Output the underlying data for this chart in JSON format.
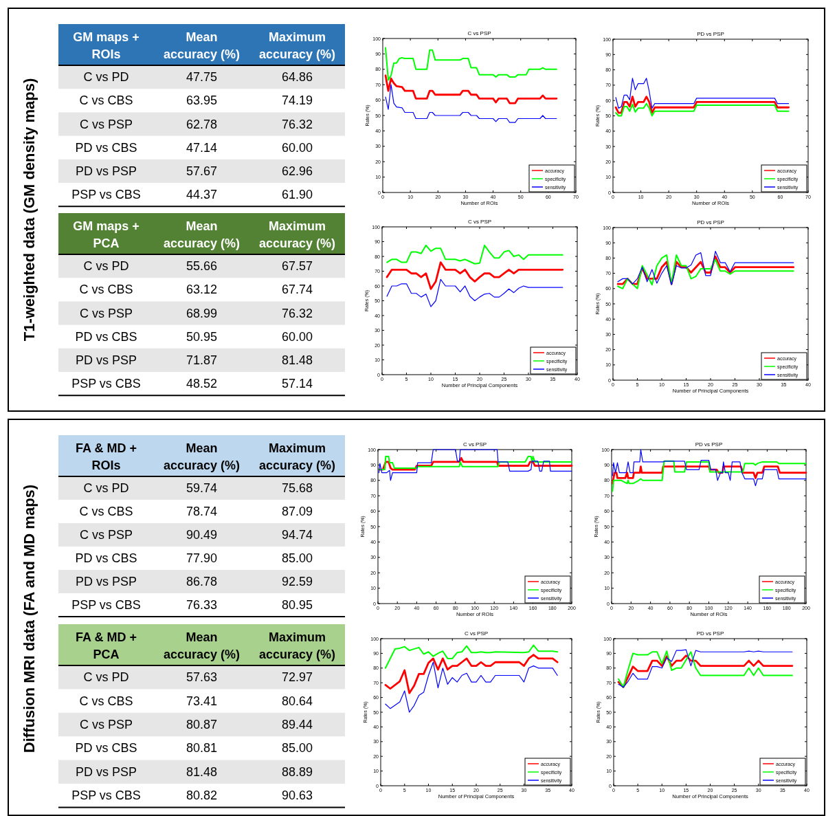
{
  "chart_data": [
    {
      "type": "other",
      "title": "GM maps + ROIs",
      "categories": [
        "C vs PD",
        "C vs CBS",
        "C vs PSP",
        "PD vs CBS",
        "PD vs PSP",
        "PSP vs CBS"
      ],
      "annotations": [
        "T1-weighted data (GM density maps)"
      ],
      "series": [
        {
          "name": "Mean accuracy (%)",
          "values": [
            47.75,
            63.95,
            62.78,
            47.14,
            57.67,
            44.37
          ],
          "value_labels": [
            "47.75",
            "63.95",
            "62.78",
            "47.14",
            "57.67",
            "44.37"
          ]
        },
        {
          "name": "Maximum accuracy (%)",
          "values": [
            64.86,
            74.19,
            76.32,
            60,
            62.96,
            61.9
          ],
          "value_labels": [
            "64.86",
            "74.19",
            "76.32",
            "60.00",
            "62.96",
            "61.90"
          ]
        }
      ]
    },
    {
      "type": "line",
      "title": "C vs PSP",
      "xlabel": "Number of ROIs",
      "ylabel": "Rates (%)",
      "xlim": [
        0,
        70
      ],
      "xticks": [
        0,
        10,
        20,
        30,
        40,
        50,
        60,
        70
      ],
      "ylim": [
        0,
        100
      ],
      "yticks": [
        0,
        10,
        20,
        30,
        40,
        50,
        60,
        70,
        80,
        90,
        100
      ],
      "legend": "bottom right",
      "series": [
        {
          "name": "accuracy",
          "color": "#ff0000",
          "x": [
            1,
            2,
            3,
            4,
            5,
            7,
            8,
            11,
            12,
            16,
            17,
            18,
            19,
            28,
            29,
            31,
            32,
            34,
            35,
            40,
            41,
            42,
            45,
            46,
            48,
            49,
            57,
            58,
            59,
            63
          ],
          "values": [
            76,
            66,
            74,
            71,
            69,
            68.5,
            66,
            66,
            61,
            61,
            66,
            66,
            63.5,
            63.5,
            66,
            66,
            63.5,
            63.5,
            61,
            61,
            58.5,
            61,
            61,
            58,
            58,
            61,
            61,
            63,
            61,
            61
          ]
        },
        {
          "name": "specificity",
          "color": "#00ff00",
          "x": [
            1,
            2,
            3,
            4,
            5,
            6,
            7,
            8,
            11,
            12,
            16,
            17,
            18,
            19,
            28,
            29,
            31,
            32,
            34,
            35,
            40,
            41,
            42,
            45,
            46,
            48,
            49,
            52,
            53,
            57,
            58,
            59,
            63
          ],
          "values": [
            94,
            73,
            76,
            84,
            84,
            87,
            87.5,
            87,
            87,
            80,
            80,
            92.5,
            92.5,
            86,
            86,
            87,
            87,
            81,
            81,
            76.5,
            76.5,
            75,
            76.5,
            76.5,
            75,
            75,
            76.5,
            76.5,
            80,
            80,
            81,
            80,
            80
          ]
        },
        {
          "name": "sensitivity",
          "color": "#0000ff",
          "x": [
            1,
            2,
            3,
            4,
            5,
            7,
            8,
            11,
            12,
            16,
            17,
            18,
            19,
            28,
            29,
            31,
            32,
            34,
            35,
            40,
            41,
            42,
            45,
            46,
            48,
            49,
            57,
            58,
            59,
            63
          ],
          "values": [
            62,
            54,
            70,
            58,
            55.5,
            55,
            52,
            52,
            48,
            48,
            52,
            52,
            50,
            50,
            52,
            52,
            50,
            50,
            48,
            48,
            46,
            48,
            48,
            45.5,
            45.5,
            48,
            48,
            50,
            48,
            48
          ]
        }
      ]
    },
    {
      "type": "line",
      "title": "PD vs PSP",
      "xlabel": "Number of ROIs",
      "ylabel": "Rates (%)",
      "xlim": [
        0,
        70
      ],
      "xticks": [
        0,
        10,
        20,
        30,
        40,
        50,
        60,
        70
      ],
      "ylim": [
        0,
        100
      ],
      "yticks": [
        0,
        10,
        20,
        30,
        40,
        50,
        60,
        70,
        80,
        90,
        100
      ],
      "legend": "bottom right",
      "series": [
        {
          "name": "accuracy",
          "color": "#ff0000",
          "x": [
            1,
            2,
            3,
            4,
            5,
            6,
            7,
            8,
            9,
            11,
            12,
            13,
            14,
            15,
            29,
            30,
            58,
            59,
            63
          ],
          "values": [
            55.5,
            52,
            52,
            59,
            59,
            56,
            62.5,
            56,
            59,
            59,
            62.5,
            59,
            52,
            55.5,
            55.5,
            59,
            59,
            55.5,
            55.5
          ]
        },
        {
          "name": "specificity",
          "color": "#00ff00",
          "x": [
            1,
            2,
            3,
            4,
            5,
            6,
            7,
            8,
            9,
            11,
            12,
            13,
            14,
            15,
            29,
            30,
            58,
            59,
            63
          ],
          "values": [
            52,
            50,
            50,
            56,
            56,
            53,
            57.5,
            52.5,
            55,
            55,
            58,
            55,
            50,
            53,
            53,
            57,
            57,
            53,
            53
          ]
        },
        {
          "name": "sensitivity",
          "color": "#0000ff",
          "x": [
            1,
            2,
            3,
            4,
            5,
            6,
            7,
            8,
            9,
            11,
            12,
            13,
            14,
            15,
            29,
            30,
            58,
            59,
            63
          ],
          "values": [
            62,
            55,
            56,
            63.5,
            63.5,
            60.5,
            74.5,
            67,
            71,
            71,
            74.5,
            66,
            55,
            58,
            58,
            61.5,
            61.5,
            58,
            58
          ]
        }
      ]
    },
    {
      "type": "other",
      "title": "GM maps + PCA",
      "categories": [
        "C vs PD",
        "C vs CBS",
        "C vs PSP",
        "PD vs CBS",
        "PD vs PSP",
        "PSP vs CBS"
      ],
      "series": [
        {
          "name": "Mean accuracy (%)",
          "values": [
            55.66,
            63.12,
            68.99,
            50.95,
            71.87,
            48.52
          ],
          "value_labels": [
            "55.66",
            "63.12",
            "68.99",
            "50.95",
            "71.87",
            "48.52"
          ]
        },
        {
          "name": "Maximum accuracy (%)",
          "values": [
            67.57,
            67.74,
            76.32,
            60,
            81.48,
            57.14
          ],
          "value_labels": [
            "67.57",
            "67.74",
            "76.32",
            "60.00",
            "81.48",
            "57.14"
          ]
        }
      ]
    },
    {
      "type": "line",
      "title": "C vs PSP",
      "xlabel": "Number of Principal Components",
      "ylabel": "Rates (%)",
      "xlim": [
        0,
        40
      ],
      "xticks": [
        0,
        5,
        10,
        15,
        20,
        25,
        30,
        35,
        40
      ],
      "ylim": [
        0,
        100
      ],
      "yticks": [
        0,
        10,
        20,
        30,
        40,
        50,
        60,
        70,
        80,
        90,
        100
      ],
      "legend": "bottom right",
      "series": [
        {
          "name": "accuracy",
          "color": "#ff0000",
          "x": [
            1,
            2,
            5,
            6,
            7,
            8,
            9,
            10,
            11,
            12,
            13,
            15,
            16,
            17,
            18,
            19,
            20,
            21,
            22,
            23,
            24,
            25,
            26,
            27,
            28,
            37
          ],
          "values": [
            66,
            71,
            71,
            68.5,
            68.5,
            66,
            68.5,
            58,
            63,
            76,
            71,
            71,
            68.5,
            71,
            66,
            63,
            66,
            68.5,
            68.5,
            66,
            66,
            68.5,
            71,
            68.5,
            71,
            71
          ]
        },
        {
          "name": "specificity",
          "color": "#00ff00",
          "x": [
            1,
            2,
            3,
            4,
            5,
            6,
            7,
            8,
            9,
            10,
            11,
            12,
            13,
            15,
            16,
            17,
            18,
            19,
            20,
            21,
            22,
            23,
            24,
            25,
            26,
            27,
            28,
            29,
            30,
            37
          ],
          "values": [
            76,
            78,
            78,
            76,
            76,
            83,
            83,
            82,
            87.5,
            83.5,
            85.5,
            85.5,
            78,
            78,
            77,
            78,
            76.5,
            75,
            75.5,
            87.5,
            83,
            79,
            79,
            83,
            84,
            80,
            81,
            78,
            81,
            81
          ]
        },
        {
          "name": "sensitivity",
          "color": "#0000ff",
          "x": [
            1,
            2,
            3,
            4,
            5,
            6,
            7,
            8,
            9,
            10,
            11,
            12,
            13,
            15,
            16,
            17,
            18,
            19,
            20,
            21,
            22,
            23,
            24,
            25,
            26,
            27,
            28,
            29,
            30,
            37
          ],
          "values": [
            53,
            60,
            60,
            61.5,
            61.5,
            55,
            55,
            52.5,
            54.5,
            46,
            50,
            64.5,
            60,
            60,
            56,
            60,
            53,
            50,
            52.5,
            54.5,
            55,
            52.5,
            52.5,
            55,
            58,
            55.5,
            58.5,
            60,
            59,
            59
          ]
        }
      ]
    },
    {
      "type": "line",
      "title": "PD vs PSP",
      "xlabel": "Number of Principal Components",
      "ylabel": "Rates (%)",
      "xlim": [
        0,
        40
      ],
      "xticks": [
        0,
        5,
        10,
        15,
        20,
        25,
        30,
        35,
        40
      ],
      "ylim": [
        0,
        100
      ],
      "yticks": [
        0,
        10,
        20,
        30,
        40,
        50,
        60,
        70,
        80,
        90,
        100
      ],
      "legend": "bottom right",
      "series": [
        {
          "name": "accuracy",
          "color": "#ff0000",
          "x": [
            1,
            2,
            3,
            4,
            5,
            6,
            7,
            8,
            9,
            10,
            11,
            12,
            13,
            14,
            15,
            16,
            17,
            18,
            19,
            20,
            21,
            22,
            23,
            24,
            25,
            37
          ],
          "values": [
            63,
            63,
            66.5,
            63,
            63,
            73.5,
            66.5,
            66.5,
            66.5,
            74,
            77.5,
            63,
            77.5,
            74,
            74,
            70.5,
            74,
            77.5,
            70.5,
            70.5,
            81,
            74,
            74,
            70.5,
            74,
            74
          ]
        },
        {
          "name": "specificity",
          "color": "#00ff00",
          "x": [
            1,
            2,
            3,
            4,
            5,
            6,
            7,
            8,
            9,
            10,
            11,
            12,
            13,
            14,
            15,
            16,
            17,
            18,
            19,
            20,
            21,
            22,
            23,
            24,
            25,
            37
          ],
          "values": [
            61.5,
            60,
            66.5,
            63,
            60,
            75,
            69,
            62.5,
            75,
            80,
            82,
            63,
            82,
            75,
            75,
            66.5,
            68,
            73,
            73,
            73,
            79,
            71.5,
            71.5,
            69.5,
            71.5,
            71.5
          ]
        },
        {
          "name": "sensitivity",
          "color": "#0000ff",
          "x": [
            1,
            2,
            3,
            4,
            5,
            6,
            7,
            8,
            9,
            10,
            11,
            12,
            13,
            14,
            15,
            16,
            17,
            18,
            19,
            20,
            21,
            22,
            23,
            24,
            25,
            37
          ],
          "values": [
            64.5,
            66.5,
            66.5,
            63,
            66.5,
            74,
            64.5,
            72.5,
            63.5,
            70,
            75,
            62.5,
            75,
            73.5,
            73.5,
            75.5,
            82,
            83.5,
            68.5,
            68.5,
            84.5,
            77,
            77,
            71,
            77,
            77
          ]
        }
      ]
    },
    {
      "type": "other",
      "title": "FA & MD + ROIs",
      "categories": [
        "C vs PD",
        "C vs CBS",
        "C vs PSP",
        "PD vs CBS",
        "PD vs PSP",
        "PSP vs CBS"
      ],
      "annotations": [
        "Diffusion MRI data (FA and MD maps)"
      ],
      "series": [
        {
          "name": "Mean accuracy (%)",
          "values": [
            59.74,
            78.74,
            90.49,
            77.9,
            86.78,
            76.33
          ],
          "value_labels": [
            "59.74",
            "78.74",
            "90.49",
            "77.90",
            "86.78",
            "76.33"
          ]
        },
        {
          "name": "Maximum accuracy (%)",
          "values": [
            75.68,
            87.09,
            94.74,
            85,
            92.59,
            80.95
          ],
          "value_labels": [
            "75.68",
            "87.09",
            "94.74",
            "85.00",
            "92.59",
            "80.95"
          ]
        }
      ]
    },
    {
      "type": "line",
      "title": "C vs PSP",
      "xlabel": "Number of ROIs",
      "ylabel": "Rates (%)",
      "xlim": [
        0,
        200
      ],
      "xticks": [
        0,
        20,
        40,
        60,
        80,
        100,
        120,
        140,
        160,
        180,
        200
      ],
      "ylim": [
        0,
        100
      ],
      "yticks": [
        0,
        10,
        20,
        30,
        40,
        50,
        60,
        70,
        80,
        90,
        100
      ],
      "legend": "bottom right",
      "series": [
        {
          "name": "accuracy",
          "color": "#ff0000",
          "x": [
            1,
            5,
            8,
            11,
            13,
            15,
            38,
            40,
            55,
            57,
            84,
            86,
            88,
            123,
            124,
            155,
            157,
            160,
            162,
            200
          ],
          "values": [
            87,
            87,
            92,
            92,
            88,
            87,
            87,
            89.5,
            89.5,
            92,
            92,
            94.5,
            92,
            92,
            89.5,
            89.5,
            92,
            92,
            89.5,
            89.5
          ]
        },
        {
          "name": "specificity",
          "color": "#00ff00",
          "x": [
            1,
            7,
            8,
            11,
            12,
            15,
            17,
            40,
            41,
            57,
            84,
            85,
            87,
            124,
            125,
            152,
            155,
            158,
            159,
            160,
            162,
            200
          ],
          "values": [
            87,
            87,
            95.5,
            95.5,
            91.5,
            91.5,
            88,
            88,
            89,
            89,
            89,
            92,
            89,
            89,
            92,
            92,
            95.5,
            95.5,
            92,
            95.5,
            92,
            92
          ]
        },
        {
          "name": "sensitivity",
          "color": "#0000ff",
          "x": [
            1,
            2,
            4,
            9,
            12,
            13,
            15,
            40,
            41,
            55,
            57,
            80,
            82,
            84,
            85,
            123,
            124,
            134,
            136,
            155,
            158,
            159,
            165,
            167,
            169,
            171,
            177,
            178,
            200
          ],
          "values": [
            85,
            91,
            85,
            85,
            86.5,
            80,
            85,
            85,
            91.5,
            91.5,
            100,
            100,
            92.5,
            92.5,
            100,
            100,
            92,
            92,
            86,
            86,
            87,
            92.5,
            92.5,
            86,
            86,
            92.5,
            92.5,
            86,
            86
          ]
        }
      ]
    },
    {
      "type": "line",
      "title": "PD vs PSP",
      "xlabel": "Number of ROIs",
      "ylabel": "Rates (%)",
      "xlim": [
        0,
        200
      ],
      "xticks": [
        0,
        20,
        40,
        60,
        80,
        100,
        120,
        140,
        160,
        180,
        200
      ],
      "ylim": [
        0,
        100
      ],
      "yticks": [
        0,
        10,
        20,
        30,
        40,
        50,
        60,
        70,
        80,
        90,
        100
      ],
      "legend": "bottom right",
      "series": [
        {
          "name": "accuracy",
          "color": "#ff0000",
          "x": [
            1,
            3,
            5,
            6,
            14,
            16,
            17,
            22,
            23,
            29,
            30,
            31,
            52,
            53,
            100,
            101,
            108,
            110,
            114,
            115,
            122,
            133,
            135,
            146,
            148,
            150,
            155,
            157,
            171,
            173,
            200
          ],
          "values": [
            78,
            85,
            85,
            81.5,
            81.5,
            85,
            81.5,
            81.5,
            85,
            85,
            89,
            85,
            85,
            89,
            89,
            87,
            87,
            85,
            85,
            89,
            89,
            89,
            85,
            85,
            81.5,
            85,
            85,
            89,
            89,
            85,
            85
          ]
        },
        {
          "name": "specificity",
          "color": "#00ff00",
          "x": [
            1,
            2,
            10,
            16,
            17,
            18,
            22,
            28,
            30,
            32,
            52,
            54,
            64,
            65,
            75,
            77,
            100,
            101,
            135,
            137,
            146,
            148,
            150,
            155,
            170,
            172,
            200
          ],
          "values": [
            73,
            80,
            80,
            78,
            80,
            78,
            78,
            80,
            81,
            80,
            80,
            92.5,
            92.5,
            85.5,
            85.5,
            92,
            92,
            85.5,
            85.5,
            91,
            91,
            90,
            91,
            92,
            92,
            91,
            91
          ]
        },
        {
          "name": "sensitivity",
          "color": "#0000ff",
          "x": [
            1,
            2,
            4,
            6,
            8,
            15,
            17,
            19,
            22,
            23,
            29,
            30,
            32,
            53,
            55,
            75,
            77,
            90,
            92,
            100,
            102,
            107,
            109,
            112,
            114,
            115,
            117,
            120,
            122,
            124,
            132,
            134,
            137,
            146,
            148,
            150,
            155,
            157,
            170,
            172,
            200
          ],
          "values": [
            83,
            91.5,
            85,
            91.5,
            85,
            85,
            92,
            85,
            85,
            92,
            92,
            100,
            92,
            92,
            92.5,
            92.5,
            87,
            87,
            93,
            93,
            87,
            87,
            80,
            85,
            85,
            92,
            85,
            85,
            80,
            92,
            92,
            85,
            81,
            81,
            76.5,
            81,
            81,
            87,
            87,
            81,
            81
          ]
        }
      ]
    },
    {
      "type": "other",
      "title": "FA & MD + PCA",
      "categories": [
        "C vs PD",
        "C vs CBS",
        "C vs PSP",
        "PD vs CBS",
        "PD vs PSP",
        "PSP vs CBS"
      ],
      "series": [
        {
          "name": "Mean accuracy (%)",
          "values": [
            57.63,
            73.41,
            80.87,
            80.81,
            81.48,
            80.82
          ],
          "value_labels": [
            "57.63",
            "73.41",
            "80.87",
            "80.81",
            "81.48",
            "80.82"
          ]
        },
        {
          "name": "Maximum accuracy (%)",
          "values": [
            72.97,
            80.64,
            89.44,
            85,
            88.89,
            90.63
          ],
          "value_labels": [
            "72.97",
            "80.64",
            "89.44",
            "85.00",
            "88.89",
            "90.63"
          ]
        }
      ]
    },
    {
      "type": "line",
      "title": "C vs PSP",
      "xlabel": "Number of Principal Components",
      "ylabel": "Rates (%)",
      "xlim": [
        0,
        40
      ],
      "xticks": [
        0,
        5,
        10,
        15,
        20,
        25,
        30,
        35,
        40
      ],
      "ylim": [
        0,
        100
      ],
      "yticks": [
        0,
        10,
        20,
        30,
        40,
        50,
        60,
        70,
        80,
        90,
        100
      ],
      "legend": "bottom right",
      "series": [
        {
          "name": "accuracy",
          "color": "#ff0000",
          "x": [
            1,
            2,
            4,
            5,
            6,
            7,
            8,
            9,
            10,
            11,
            12,
            13,
            14,
            15,
            16,
            17,
            18,
            19,
            20,
            21,
            22,
            23,
            24,
            29,
            30,
            31,
            32,
            33,
            36,
            37
          ],
          "values": [
            68.5,
            66,
            71,
            78.5,
            63,
            68,
            76,
            76,
            83.5,
            86.5,
            79,
            86.5,
            79,
            81.5,
            81.5,
            84,
            86.5,
            81.5,
            81.5,
            84,
            81.5,
            81.5,
            84,
            84,
            81.5,
            86.5,
            89,
            86.5,
            86.5,
            84
          ]
        },
        {
          "name": "specificity",
          "color": "#00ff00",
          "x": [
            1,
            3,
            4,
            5,
            6,
            8,
            9,
            10,
            11,
            12,
            13,
            14,
            15,
            16,
            17,
            18,
            19,
            20,
            21,
            22,
            23,
            24,
            30,
            31,
            32,
            33,
            36,
            37
          ],
          "values": [
            80,
            93,
            93.5,
            94.5,
            92,
            94,
            89.5,
            91,
            88,
            90,
            91.5,
            86.5,
            86.5,
            90.5,
            91,
            95,
            90.5,
            90.5,
            91,
            90.5,
            90.5,
            91,
            90.5,
            91,
            95.5,
            91.5,
            91.5,
            91
          ]
        },
        {
          "name": "sensitivity",
          "color": "#0000ff",
          "x": [
            1,
            2,
            4,
            5,
            6,
            7,
            8,
            9,
            10,
            11,
            12,
            13,
            14,
            15,
            16,
            17,
            18,
            19,
            20,
            21,
            22,
            23,
            24,
            29,
            30,
            31,
            32,
            33,
            36,
            37
          ],
          "values": [
            55.5,
            52.5,
            57,
            64.5,
            50,
            54.5,
            61.5,
            63.5,
            75,
            84,
            66.5,
            80,
            69,
            73.5,
            70.5,
            75,
            76.5,
            70.5,
            70.5,
            75,
            70.5,
            70.5,
            75,
            75,
            70.5,
            80,
            81.5,
            80,
            80,
            75
          ]
        }
      ]
    },
    {
      "type": "line",
      "title": "PD vs PSP",
      "xlabel": "Number of Principal Components",
      "ylabel": "Rates (%)",
      "xlim": [
        0,
        40
      ],
      "xticks": [
        0,
        5,
        10,
        15,
        20,
        25,
        30,
        35,
        40
      ],
      "ylim": [
        0,
        100
      ],
      "yticks": [
        0,
        10,
        20,
        30,
        40,
        50,
        60,
        70,
        80,
        90,
        100
      ],
      "legend": "bottom right",
      "series": [
        {
          "name": "accuracy",
          "color": "#ff0000",
          "x": [
            1,
            2,
            3,
            4,
            5,
            7,
            8,
            9,
            10,
            11,
            12,
            13,
            14,
            15,
            16,
            17,
            18,
            27,
            28,
            29,
            30,
            31,
            37
          ],
          "values": [
            70.5,
            67,
            74,
            81,
            78,
            78,
            85,
            85,
            81.5,
            88,
            81.5,
            85,
            85,
            88.5,
            85,
            85,
            81.5,
            81.5,
            85,
            81.5,
            85,
            81.5,
            81.5
          ]
        },
        {
          "name": "specificity",
          "color": "#00ff00",
          "x": [
            1,
            2,
            3,
            4,
            5,
            7,
            8,
            9,
            10,
            11,
            12,
            13,
            14,
            16,
            17,
            18,
            27,
            28,
            29,
            30,
            31,
            37
          ],
          "values": [
            72.5,
            67,
            79,
            90,
            89,
            89,
            91,
            91,
            83,
            91.5,
            78.5,
            80,
            80,
            91,
            80,
            75,
            75,
            80,
            75,
            80,
            75,
            75
          ]
        },
        {
          "name": "sensitivity",
          "color": "#0000ff",
          "x": [
            1,
            2,
            3,
            4,
            5,
            7,
            8,
            9,
            10,
            11,
            12,
            13,
            14,
            15,
            16,
            17,
            18,
            27,
            28,
            29,
            30,
            31,
            37
          ],
          "values": [
            69,
            67,
            71,
            76.5,
            72.5,
            72.5,
            81,
            81,
            80,
            87,
            84.5,
            92,
            92,
            92.5,
            81.5,
            92,
            91,
            91,
            91.5,
            91,
            91.5,
            91,
            91
          ]
        }
      ]
    }
  ]
}
